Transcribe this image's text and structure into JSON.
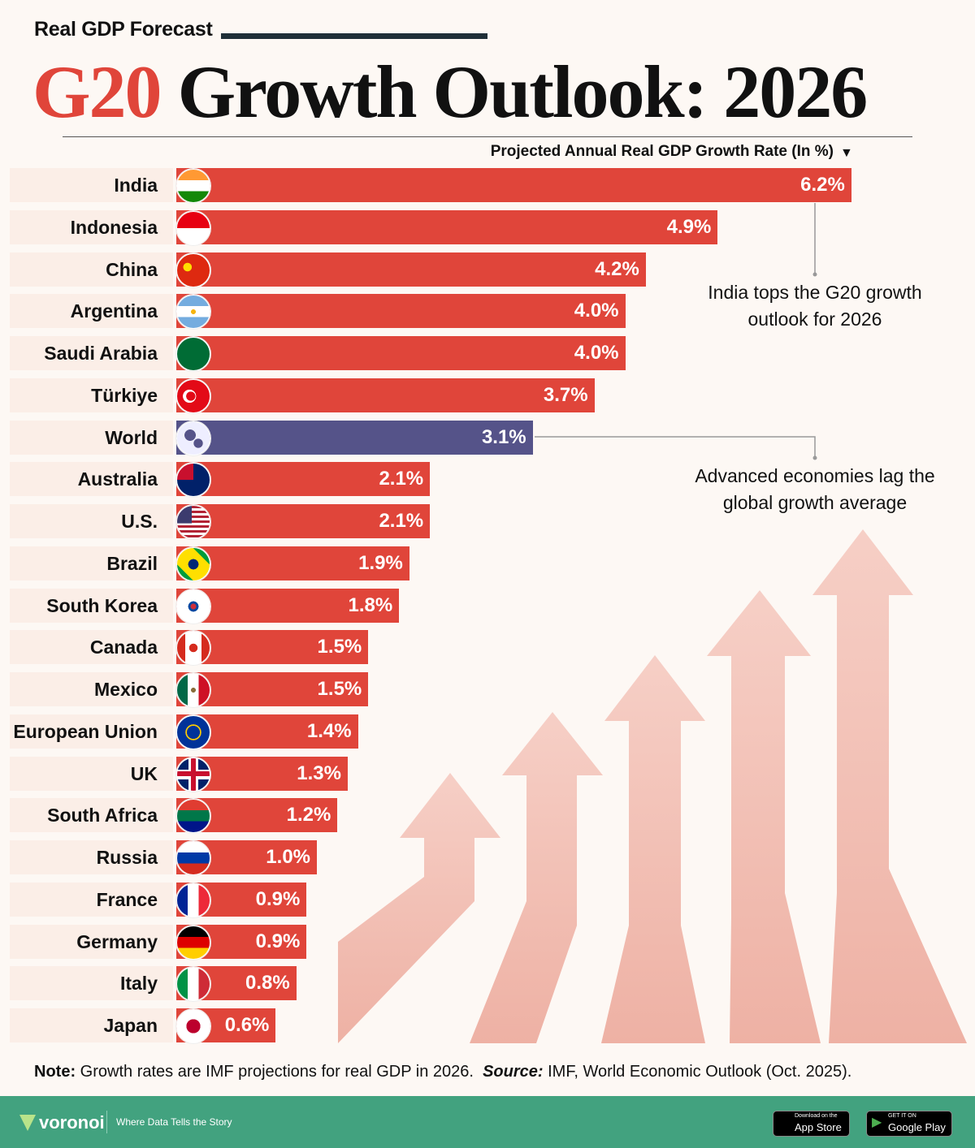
{
  "header": {
    "kicker": "Real GDP Forecast",
    "title_accent": "G20",
    "title_rest": "Growth Outlook: 2026"
  },
  "chart_data": {
    "type": "bar",
    "orientation": "horizontal",
    "xlabel": "Projected Annual Real GDP Growth Rate (In %)",
    "sort": "descending",
    "categories": [
      "India",
      "Indonesia",
      "China",
      "Argentina",
      "Saudi Arabia",
      "Türkiye",
      "World",
      "Australia",
      "U.S.",
      "Brazil",
      "South Korea",
      "Canada",
      "Mexico",
      "European Union",
      "UK",
      "South Africa",
      "Russia",
      "France",
      "Germany",
      "Italy",
      "Japan"
    ],
    "values": [
      6.2,
      4.9,
      4.2,
      4.0,
      4.0,
      3.7,
      3.1,
      2.1,
      2.1,
      1.9,
      1.8,
      1.5,
      1.5,
      1.4,
      1.3,
      1.2,
      1.0,
      0.9,
      0.9,
      0.8,
      0.6
    ],
    "value_labels": [
      "6.2%",
      "4.9%",
      "4.2%",
      "4.0%",
      "4.0%",
      "3.7%",
      "3.1%",
      "2.1%",
      "2.1%",
      "1.9%",
      "1.8%",
      "1.5%",
      "1.5%",
      "1.4%",
      "1.3%",
      "1.2%",
      "1.0%",
      "0.9%",
      "0.9%",
      "0.8%",
      "0.6%"
    ],
    "highlight": "World",
    "colors": {
      "bar": "#e0453a",
      "highlight": "#555389"
    },
    "annotations": [
      "India tops the G20 growth outlook for 2026",
      "Advanced economies lag the global growth average"
    ]
  },
  "note": {
    "label": "Note:",
    "text": "Growth rates are IMF projections for real GDP in 2026.",
    "source_label": "Source:",
    "source": "IMF, World Economic Outlook (Oct. 2025)."
  },
  "footer": {
    "brand": "voronoi",
    "tagline": "Where Data Tells the Story",
    "appstore_small": "Download on the",
    "appstore": "App Store",
    "play_small": "GET IT ON",
    "play": "Google Play"
  }
}
